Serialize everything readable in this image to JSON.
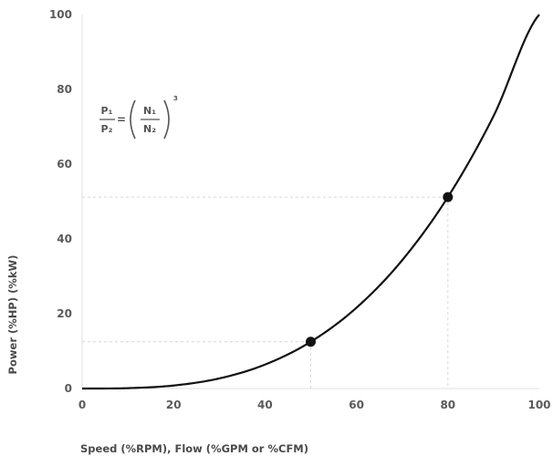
{
  "chart_data": {
    "type": "line",
    "xlabel": "Speed (%RPM), Flow (%GPM or %CFM)",
    "ylabel": "Power (%HP) (%kW)",
    "xlim": [
      0,
      100
    ],
    "ylim": [
      0,
      100
    ],
    "x_ticks": [
      "0",
      "20",
      "40",
      "60",
      "80",
      "100"
    ],
    "y_ticks": [
      "0",
      "20",
      "40",
      "60",
      "80",
      "100"
    ],
    "grid": false,
    "series": [
      {
        "relation": "y = 100 * (x/100)^3",
        "x": [
          0,
          10,
          20,
          30,
          40,
          50,
          60,
          70,
          80,
          90,
          100
        ],
        "y": [
          0,
          0.1,
          0.8,
          2.7,
          6.4,
          12.5,
          21.6,
          34.3,
          51.2,
          72.9,
          100
        ]
      }
    ],
    "highlighted_points": [
      {
        "x": 50,
        "y": 12.5
      },
      {
        "x": 80,
        "y": 51.2
      }
    ],
    "annotation": {
      "lhs_numerator": "P₁",
      "lhs_denominator": "P₂",
      "equals": "=",
      "rhs_numerator": "N₁",
      "rhs_denominator": "N₂",
      "exponent": "3"
    },
    "colors": {
      "curve": "#111111",
      "guides": "#d6d6d6",
      "text": "#555555"
    }
  }
}
